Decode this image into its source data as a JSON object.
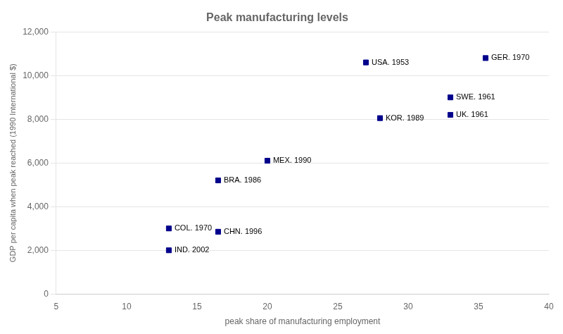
{
  "chart_data": {
    "type": "scatter",
    "title": "Peak manufacturing levels",
    "xlabel": "peak share of manufacturing employment",
    "ylabel": "GDP per capita when peak reached (1990 International $)",
    "xlim": [
      5,
      40
    ],
    "ylim": [
      0,
      12000
    ],
    "xticks": [
      5,
      10,
      15,
      20,
      25,
      30,
      35,
      40
    ],
    "yticks": [
      0,
      {
        "value": 2000,
        "label": "2,000"
      },
      {
        "value": 4000,
        "label": "4,000"
      },
      {
        "value": 6000,
        "label": "6,000"
      },
      {
        "value": 8000,
        "label": "8,000"
      },
      {
        "value": 10000,
        "label": "10,000"
      },
      {
        "value": 12000,
        "label": "12,000"
      }
    ],
    "grid": "y",
    "color": "#00008B",
    "marker": "square",
    "x": [
      35.5,
      27.0,
      33.0,
      33.0,
      28.0,
      20.0,
      16.5,
      13.0,
      16.5,
      13.0
    ],
    "values": [
      10800,
      10600,
      9000,
      8200,
      8050,
      6100,
      5200,
      3000,
      2850,
      2000
    ],
    "point_labels": [
      "GER. 1970",
      "USA. 1953",
      "SWE. 1961",
      "UK. 1961",
      "KOR. 1989",
      "MEX. 1990",
      "BRA. 1986",
      "COL. 1970",
      "CHN. 1996",
      "IND. 2002"
    ]
  }
}
